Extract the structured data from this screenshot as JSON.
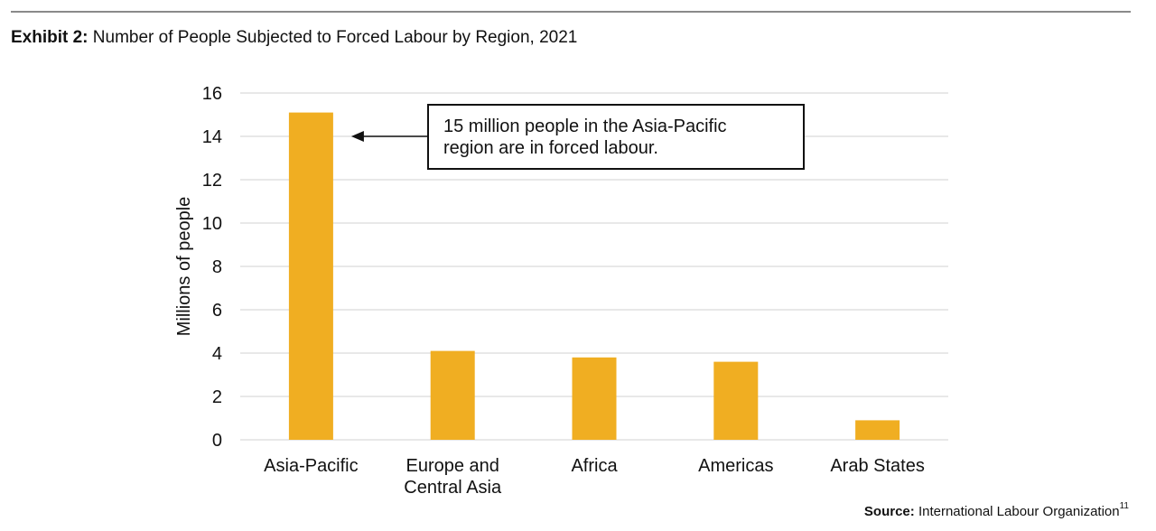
{
  "header": {
    "title_prefix": "Exhibit 2:",
    "title_text": "Number of People Subjected to Forced Labour by Region, 2021"
  },
  "footer": {
    "source_label": "Source:",
    "source_text": "International Labour Organization",
    "footnote": "11"
  },
  "colors": {
    "bar": "#F0AE22",
    "grid": "#D9D9D9",
    "text": "#111111"
  },
  "chart_data": {
    "type": "bar",
    "title": "Number of People Subjected to Forced Labour by Region, 2021",
    "categories": [
      [
        "Asia-Pacific"
      ],
      [
        "Europe and",
        "Central Asia"
      ],
      [
        "Africa"
      ],
      [
        "Americas"
      ],
      [
        "Arab States"
      ]
    ],
    "values": [
      15.1,
      4.1,
      3.8,
      3.6,
      0.9
    ],
    "ylabel": "Millions of people",
    "xlabel": "",
    "ylim": [
      0,
      16
    ],
    "yticks": [
      0,
      2,
      4,
      6,
      8,
      10,
      12,
      14,
      16
    ],
    "grid": true,
    "annotation": {
      "lines": [
        "15 million people in the Asia-Pacific",
        "region are in forced labour."
      ],
      "target_category": 0,
      "target_value": 14
    }
  }
}
